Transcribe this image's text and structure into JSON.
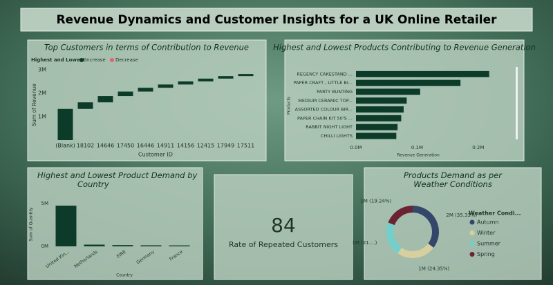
{
  "title": "Revenue Dynamics and Customer Insights for a UK Online Retailer",
  "card": {
    "value": 84,
    "label": "Rate of Repeated Customers"
  },
  "chart_data": [
    {
      "type": "waterfall",
      "title": "Top Customers in terms of Contribution to Revenue",
      "legend_title": "Highest and Lowest",
      "legend": [
        {
          "name": "Increase",
          "color": "#0d3b2a"
        },
        {
          "name": "Decrease",
          "color": "#e8606f"
        }
      ],
      "categories": [
        "(Blank)",
        "18102",
        "14646",
        "17450",
        "16446",
        "14911",
        "14156",
        "12415",
        "17949",
        "17511"
      ],
      "values": [
        1330000,
        280000,
        270000,
        190000,
        160000,
        140000,
        130000,
        120000,
        110000,
        90000
      ],
      "ylim": [
        0,
        3000000
      ],
      "yticks": [
        {
          "value": 1000000,
          "label": "1M"
        },
        {
          "value": 2000000,
          "label": "2M"
        },
        {
          "value": 3000000,
          "label": "3M"
        }
      ],
      "y_label": "Sum of Revenue",
      "x_label": "Customer ID"
    },
    {
      "type": "hbar",
      "title": "Highest and Lowest Products Contributing to Revenue Generation",
      "categories": [
        "REGENCY CAKESTAND ...",
        "PAPER CRAFT , LITTLE BI...",
        "PARTY BUNTING",
        "MEDIUM CERAMIC TOP...",
        "ASSORTED COLOUR BIR...",
        "PAPER CHAIN KIT 50'S ...",
        "RABBIT NIGHT LIGHT",
        "CHILLI LIGHTS"
      ],
      "values": [
        218000,
        171000,
        105000,
        83000,
        78000,
        74000,
        68000,
        66000
      ],
      "color": "#0d3b2a",
      "xlim": [
        0,
        250000
      ],
      "xticks": [
        {
          "value": 0,
          "label": "0.0M"
        },
        {
          "value": 100000,
          "label": "0.1M"
        },
        {
          "value": 200000,
          "label": "0.2M"
        }
      ],
      "y_label": "Products",
      "x_label": "Revenue Generation"
    },
    {
      "type": "bar",
      "title": "Highest and Lowest Product Demand by Country",
      "categories": [
        "United Kin...",
        "Netherlands",
        "EIRE",
        "Germany",
        "France"
      ],
      "values": [
        4760000,
        200000,
        145000,
        120000,
        110000
      ],
      "color": "#0d3b2a",
      "ylim": [
        0,
        6000000
      ],
      "yticks": [
        {
          "value": 0,
          "label": "0M"
        },
        {
          "value": 5000000,
          "label": "5M"
        }
      ],
      "y_label": "Sum of Quantity",
      "x_label": "Country"
    },
    {
      "type": "pie",
      "title": "Products Demand as per Weather Conditions",
      "legend_title": "Weather Condi...",
      "categories": [
        "Autumn",
        "Winter",
        "Summer",
        "Spring"
      ],
      "values": [
        35.33,
        24.35,
        21.08,
        19.24
      ],
      "value_labels": [
        "2M (35.33%)",
        "1M (24.35%)",
        "1M (21....)",
        "1M (19.24%)"
      ],
      "colors": [
        "#34466a",
        "#d8cf9f",
        "#72d0cc",
        "#6b2233"
      ]
    }
  ]
}
